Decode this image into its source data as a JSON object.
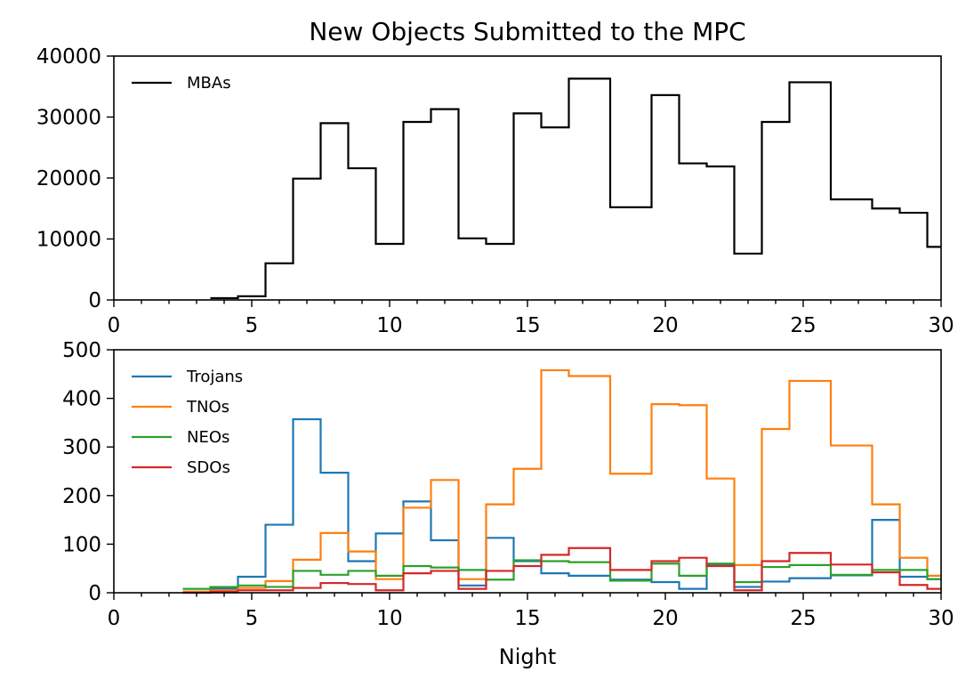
{
  "title": "New Objects Submitted to the MPC",
  "chart_data": [
    {
      "type": "line",
      "drawstyle": "steps",
      "title": "New Objects Submitted to the MPC",
      "xlabel": "",
      "ylabel": "",
      "xlim": [
        0,
        30
      ],
      "ylim": [
        0,
        40000
      ],
      "x_ticks": [
        0,
        5,
        10,
        15,
        20,
        25,
        30
      ],
      "y_ticks": [
        0,
        10000,
        20000,
        30000,
        40000
      ],
      "legend_position": "top-left",
      "edges": [
        3.5,
        4.5,
        5.5,
        6.5,
        7.5,
        8.5,
        9.5,
        10.5,
        11.5,
        12.5,
        13.5,
        14.5,
        15.5,
        16.5,
        18,
        19.5,
        20.5,
        21.5,
        22.5,
        23.5,
        24.5,
        26,
        27.5,
        28.5,
        29.5,
        30
      ],
      "series": [
        {
          "name": "MBAs",
          "color": "#000000",
          "values": [
            300,
            600,
            6000,
            19900,
            29000,
            21600,
            9200,
            29200,
            31300,
            10100,
            9200,
            30600,
            28300,
            36300,
            15200,
            33600,
            22400,
            21900,
            7600,
            29200,
            35700,
            16500,
            15000,
            14300,
            8700
          ]
        }
      ]
    },
    {
      "type": "line",
      "drawstyle": "steps",
      "title": "",
      "xlabel": "Night",
      "ylabel": "",
      "xlim": [
        0,
        30
      ],
      "ylim": [
        0,
        500
      ],
      "x_ticks": [
        0,
        5,
        10,
        15,
        20,
        25,
        30
      ],
      "y_ticks": [
        0,
        100,
        200,
        300,
        400,
        500
      ],
      "legend_position": "top-left",
      "edges": [
        2.5,
        3.5,
        4.5,
        5.5,
        6.5,
        7.5,
        8.5,
        9.5,
        10.5,
        11.5,
        12.5,
        13.5,
        14.5,
        15.5,
        16.5,
        18,
        19.5,
        20.5,
        21.5,
        22.5,
        23.5,
        24.5,
        26,
        27.5,
        28.5,
        29.5,
        30
      ],
      "series": [
        {
          "name": "Trojans",
          "color": "#1f77b4",
          "values": [
            2,
            8,
            33,
            140,
            357,
            247,
            65,
            122,
            188,
            108,
            15,
            113,
            65,
            40,
            35,
            27,
            22,
            8,
            57,
            12,
            23,
            30,
            36,
            150,
            33,
            28
          ]
        },
        {
          "name": "TNOs",
          "color": "#ff7f0e",
          "values": [
            2,
            5,
            10,
            24,
            68,
            123,
            85,
            28,
            175,
            232,
            28,
            182,
            255,
            458,
            446,
            245,
            388,
            386,
            235,
            57,
            337,
            436,
            303,
            182,
            72,
            35
          ]
        },
        {
          "name": "NEOs",
          "color": "#2ca02c",
          "values": [
            8,
            12,
            15,
            12,
            45,
            37,
            45,
            35,
            55,
            52,
            47,
            27,
            67,
            65,
            63,
            25,
            60,
            35,
            60,
            22,
            53,
            57,
            37,
            47,
            47,
            28
          ]
        },
        {
          "name": "SDOs",
          "color": "#d62728",
          "values": [
            0,
            2,
            5,
            5,
            10,
            20,
            18,
            5,
            40,
            45,
            8,
            45,
            55,
            78,
            92,
            47,
            65,
            72,
            55,
            5,
            65,
            82,
            58,
            42,
            16,
            8
          ]
        }
      ]
    }
  ]
}
